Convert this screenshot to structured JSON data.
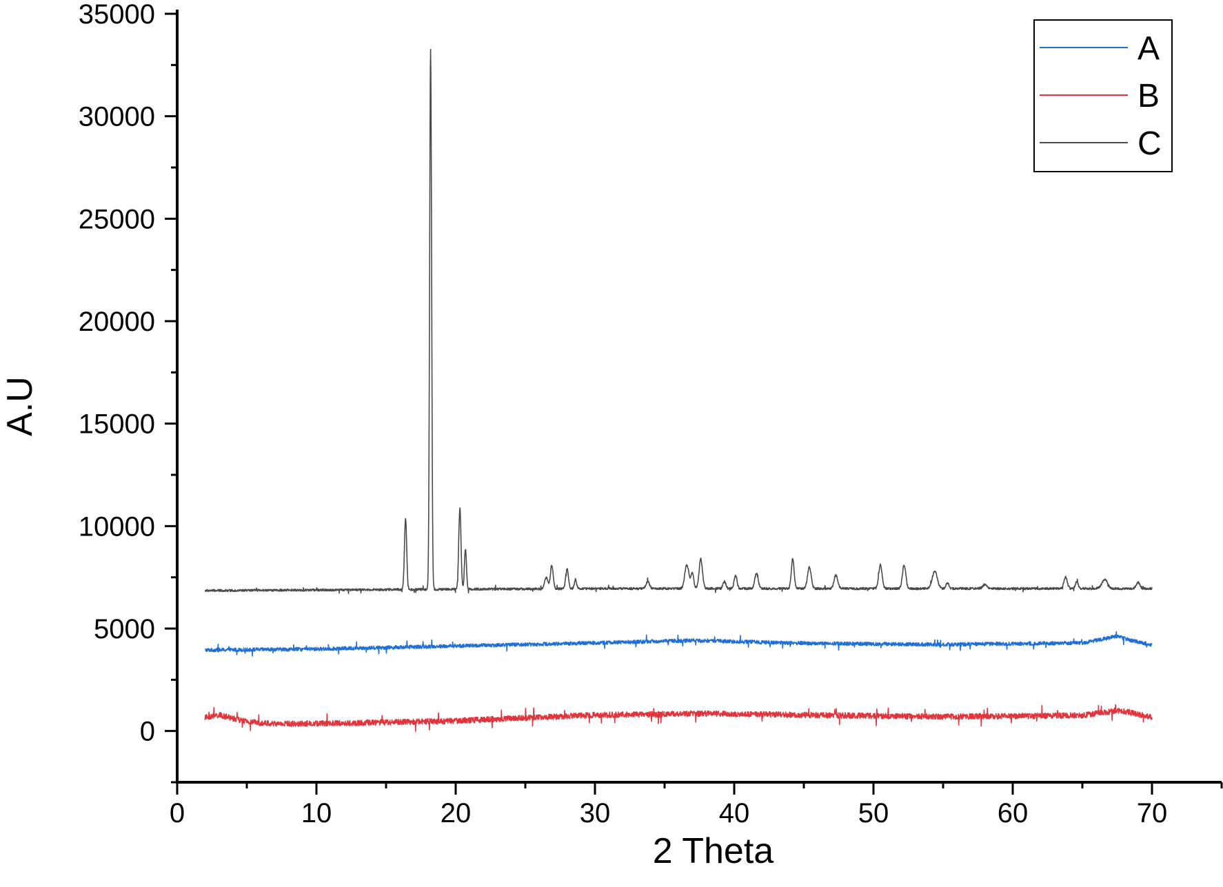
{
  "chart_data": {
    "type": "line",
    "title": "",
    "xlabel": "2 Theta",
    "ylabel": "A.U",
    "xlim": [
      0,
      75
    ],
    "ylim": [
      -2500,
      35000
    ],
    "xticks": [
      0,
      10,
      20,
      30,
      40,
      50,
      60,
      70
    ],
    "yticks": [
      0,
      5000,
      10000,
      15000,
      20000,
      25000,
      30000,
      35000
    ],
    "grid": false,
    "legend_position": "top-right",
    "series": [
      {
        "name": "A",
        "color": "#1f6fd6",
        "baseline": [
          [
            2,
            3950
          ],
          [
            10,
            4000
          ],
          [
            20,
            4150
          ],
          [
            30,
            4300
          ],
          [
            37,
            4420
          ],
          [
            45,
            4280
          ],
          [
            55,
            4220
          ],
          [
            65,
            4300
          ],
          [
            67.5,
            4620
          ],
          [
            68.5,
            4420
          ],
          [
            70,
            4200
          ]
        ],
        "peaks": [],
        "noise": 90
      },
      {
        "name": "B",
        "color": "#e0353d",
        "baseline": [
          [
            2,
            650
          ],
          [
            3,
            780
          ],
          [
            5,
            450
          ],
          [
            7,
            350
          ],
          [
            12,
            380
          ],
          [
            20,
            500
          ],
          [
            30,
            780
          ],
          [
            38,
            850
          ],
          [
            45,
            780
          ],
          [
            55,
            700
          ],
          [
            65,
            760
          ],
          [
            67.5,
            1000
          ],
          [
            68.5,
            900
          ],
          [
            70,
            650
          ]
        ],
        "peaks": [],
        "noise": 140
      },
      {
        "name": "C",
        "color": "#4a4a4a",
        "baseline": [
          [
            2,
            6850
          ],
          [
            15,
            6900
          ],
          [
            30,
            6950
          ],
          [
            50,
            6950
          ],
          [
            70,
            6950
          ]
        ],
        "peaks": [
          [
            16.4,
            10400,
            0.08
          ],
          [
            18.2,
            33300,
            0.07
          ],
          [
            20.3,
            10900,
            0.08
          ],
          [
            20.7,
            8900,
            0.07
          ],
          [
            26.5,
            7500,
            0.12
          ],
          [
            26.9,
            8100,
            0.1
          ],
          [
            28.0,
            7900,
            0.1
          ],
          [
            28.6,
            7400,
            0.08
          ],
          [
            33.8,
            7300,
            0.12
          ],
          [
            36.6,
            8100,
            0.15
          ],
          [
            37.0,
            7700,
            0.1
          ],
          [
            37.6,
            8400,
            0.12
          ],
          [
            39.3,
            7300,
            0.1
          ],
          [
            40.1,
            7600,
            0.1
          ],
          [
            41.6,
            7700,
            0.12
          ],
          [
            44.2,
            8400,
            0.1
          ],
          [
            45.4,
            8000,
            0.13
          ],
          [
            47.3,
            7600,
            0.13
          ],
          [
            50.5,
            8100,
            0.12
          ],
          [
            52.2,
            8100,
            0.12
          ],
          [
            54.4,
            7800,
            0.18
          ],
          [
            55.3,
            7250,
            0.1
          ],
          [
            58.0,
            7150,
            0.15
          ],
          [
            63.8,
            7500,
            0.12
          ],
          [
            64.6,
            7300,
            0.1
          ],
          [
            66.6,
            7400,
            0.2
          ],
          [
            69.0,
            7250,
            0.13
          ]
        ],
        "noise": 55
      }
    ]
  }
}
